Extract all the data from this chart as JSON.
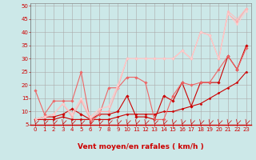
{
  "xlabel": "Vent moyen/en rafales ( km/h )",
  "xlim": [
    -0.5,
    23.5
  ],
  "ylim": [
    5,
    51
  ],
  "yticks": [
    5,
    10,
    15,
    20,
    25,
    30,
    35,
    40,
    45,
    50
  ],
  "xticks": [
    0,
    1,
    2,
    3,
    4,
    5,
    6,
    7,
    8,
    9,
    10,
    11,
    12,
    13,
    14,
    15,
    16,
    17,
    18,
    19,
    20,
    21,
    22,
    23
  ],
  "bg_color": "#cce8e8",
  "grid_color": "#aaaaaa",
  "series": [
    {
      "x": [
        0,
        1,
        2,
        3,
        4,
        5,
        6,
        7,
        8,
        9,
        10,
        11,
        12,
        13,
        14,
        15,
        16,
        17,
        18,
        19,
        20,
        21,
        22,
        23
      ],
      "y": [
        7,
        8,
        8,
        9,
        11,
        9,
        7,
        9,
        9,
        10,
        16,
        8,
        8,
        7,
        16,
        14,
        21,
        12,
        21,
        21,
        21,
        31,
        26,
        35
      ],
      "color": "#cc0000",
      "lw": 0.8,
      "marker": "D",
      "ms": 1.8
    },
    {
      "x": [
        0,
        1,
        2,
        3,
        4,
        5,
        6,
        7,
        8,
        9,
        10,
        11,
        12,
        13,
        14,
        15,
        16,
        17,
        18,
        19,
        20,
        21,
        22,
        23
      ],
      "y": [
        7,
        7,
        7,
        8,
        7,
        7,
        7,
        7,
        7,
        8,
        9,
        9,
        9,
        9,
        10,
        10,
        11,
        12,
        13,
        15,
        17,
        19,
        21,
        25
      ],
      "color": "#cc0000",
      "lw": 0.8,
      "marker": "D",
      "ms": 1.5
    },
    {
      "x": [
        0,
        1,
        2,
        3,
        4,
        5,
        6,
        7,
        8,
        9,
        10,
        11,
        12,
        13,
        14,
        15,
        16,
        17,
        18,
        19,
        20,
        21,
        22,
        23
      ],
      "y": [
        18,
        9,
        14,
        14,
        14,
        25,
        6,
        9,
        19,
        19,
        23,
        23,
        21,
        7,
        7,
        16,
        21,
        20,
        21,
        21,
        26,
        31,
        26,
        34
      ],
      "color": "#ee6666",
      "lw": 0.8,
      "marker": "D",
      "ms": 1.8
    },
    {
      "x": [
        0,
        1,
        2,
        3,
        4,
        5,
        6,
        7,
        8,
        9,
        10,
        11,
        12,
        13,
        14,
        15,
        16,
        17,
        18,
        19,
        20,
        21,
        22,
        23
      ],
      "y": [
        7,
        8,
        9,
        13,
        8,
        14,
        7,
        10,
        10,
        19,
        30,
        30,
        30,
        30,
        30,
        30,
        33,
        30,
        40,
        39,
        30,
        47,
        44,
        49
      ],
      "color": "#ffaaaa",
      "lw": 0.8,
      "marker": "D",
      "ms": 1.8
    },
    {
      "x": [
        0,
        1,
        2,
        3,
        4,
        5,
        6,
        7,
        8,
        9,
        10,
        11,
        12,
        13,
        14,
        15,
        16,
        17,
        18,
        19,
        20,
        21,
        22,
        23
      ],
      "y": [
        7,
        8,
        9,
        13,
        9,
        15,
        8,
        11,
        12,
        20,
        30,
        30,
        30,
        30,
        30,
        30,
        33,
        30,
        40,
        39,
        30,
        48,
        45,
        49
      ],
      "color": "#ffbbbb",
      "lw": 0.7,
      "marker": "D",
      "ms": 1.5
    },
    {
      "x": [
        0,
        1,
        2,
        3,
        4,
        5,
        6,
        7,
        8,
        9,
        10,
        11,
        12,
        13,
        14,
        15,
        16,
        17,
        18,
        19,
        20,
        21,
        22,
        23
      ],
      "y": [
        7,
        8,
        9,
        13,
        9,
        15,
        8,
        11,
        12,
        20,
        30,
        30,
        30,
        30,
        30,
        30,
        33,
        30,
        40,
        39,
        30,
        47,
        43,
        48
      ],
      "color": "#ffcccc",
      "lw": 0.7,
      "marker": "D",
      "ms": 1.5
    }
  ],
  "arrow_color": "#cc0000",
  "xlabel_color": "#cc0000",
  "tick_color": "#cc0000",
  "xlabel_fontsize": 6.5,
  "tick_fontsize": 5.0
}
